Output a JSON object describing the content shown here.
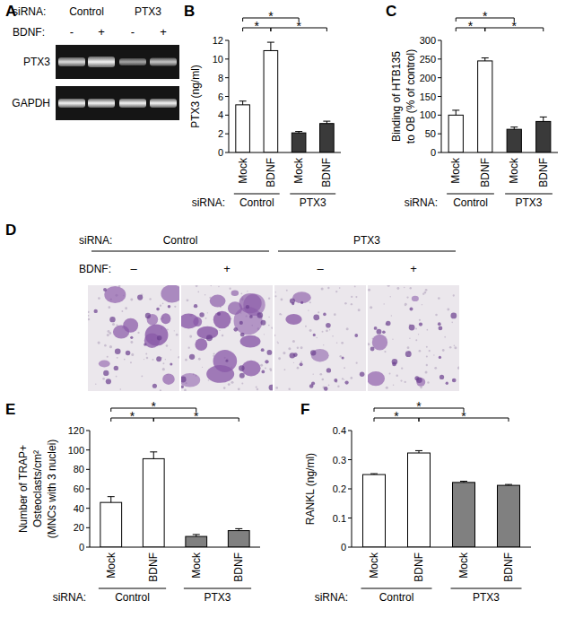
{
  "chart_data": [
    {
      "type": "bar",
      "title": "B",
      "y_label": [
        "PTX3 (ng/ml)"
      ],
      "x_label": "siRNA:",
      "groups": [
        "Control",
        "PTX3"
      ],
      "categories": [
        "Mock",
        "BDNF",
        "Mock",
        "BDNF"
      ],
      "values": [
        5.1,
        10.9,
        2.1,
        3.1
      ],
      "errors": [
        0.4,
        0.9,
        0.15,
        0.25
      ],
      "colors": [
        "#ffffff",
        "#ffffff",
        "#3a3a3a",
        "#3a3a3a"
      ],
      "ylim": [
        0,
        12
      ],
      "yticks": [
        0,
        2,
        4,
        6,
        8,
        10,
        12
      ],
      "significance": [
        {
          "between": [
            0,
            1
          ],
          "label": "*"
        },
        {
          "between": [
            1,
            3
          ],
          "label": "*"
        },
        {
          "between": [
            0,
            2
          ],
          "label": "*"
        }
      ]
    },
    {
      "type": "bar",
      "title": "C",
      "y_label": [
        "Binding of HTB135",
        "to OB (% of control)"
      ],
      "x_label": "siRNA:",
      "groups": [
        "Control",
        "PTX3"
      ],
      "categories": [
        "Mock",
        "BDNF",
        "Mock",
        "BDNF"
      ],
      "values": [
        100,
        245,
        62,
        83
      ],
      "errors": [
        13,
        8,
        6,
        12
      ],
      "colors": [
        "#ffffff",
        "#ffffff",
        "#3a3a3a",
        "#3a3a3a"
      ],
      "ylim": [
        0,
        300
      ],
      "yticks": [
        0,
        50,
        100,
        150,
        200,
        250,
        300
      ],
      "significance": [
        {
          "between": [
            0,
            1
          ],
          "label": "*"
        },
        {
          "between": [
            1,
            3
          ],
          "label": "*"
        },
        {
          "between": [
            0,
            2
          ],
          "label": "*"
        }
      ]
    },
    {
      "type": "bar",
      "title": "E",
      "y_label": [
        "Number of TRAP+",
        "Osteoclasts/cm²",
        "(MNCs with 3 nuclei)"
      ],
      "x_label": "siRNA:",
      "groups": [
        "Control",
        "PTX3"
      ],
      "categories": [
        "Mock",
        "BDNF",
        "Mock",
        "BDNF"
      ],
      "values": [
        46,
        91,
        11,
        17
      ],
      "errors": [
        6,
        7,
        2,
        2
      ],
      "colors": [
        "#ffffff",
        "#ffffff",
        "#808080",
        "#808080"
      ],
      "ylim": [
        0,
        120
      ],
      "yticks": [
        0,
        20,
        40,
        60,
        80,
        100,
        120
      ],
      "significance": [
        {
          "between": [
            0,
            1
          ],
          "label": "*"
        },
        {
          "between": [
            1,
            3
          ],
          "label": "*"
        },
        {
          "between": [
            0,
            2
          ],
          "label": "*"
        }
      ]
    },
    {
      "type": "bar",
      "title": "F",
      "y_label": [
        "RANKL (ng/ml)"
      ],
      "x_label": "siRNA:",
      "groups": [
        "Control",
        "PTX3"
      ],
      "categories": [
        "Mock",
        "BDNF",
        "Mock",
        "BDNF"
      ],
      "values": [
        0.249,
        0.323,
        0.222,
        0.212
      ],
      "errors": [
        0.003,
        0.008,
        0.004,
        0.003
      ],
      "colors": [
        "#ffffff",
        "#ffffff",
        "#808080",
        "#808080"
      ],
      "ylim": [
        0,
        0.4
      ],
      "yticks": [
        0,
        0.1,
        0.2,
        0.3,
        0.4
      ],
      "significance": [
        {
          "between": [
            0,
            1
          ],
          "label": "*"
        },
        {
          "between": [
            1,
            3
          ],
          "label": "*"
        },
        {
          "between": [
            0,
            2
          ],
          "label": "*"
        }
      ]
    }
  ],
  "gel": {
    "title": "A",
    "sirna_label": "siRNA:",
    "groups": [
      "Control",
      "PTX3"
    ],
    "treatment_label": "BDNF:",
    "lanes": [
      "-",
      "+",
      "-",
      "+"
    ],
    "rows": [
      "PTX3",
      "GAPDH"
    ]
  },
  "micrographs": {
    "title": "D",
    "sirna_label": "siRNA:",
    "groups": [
      "Control",
      "PTX3"
    ],
    "treatment_label": "BDNF:",
    "lanes": [
      "–",
      "+",
      "–",
      "+"
    ]
  }
}
